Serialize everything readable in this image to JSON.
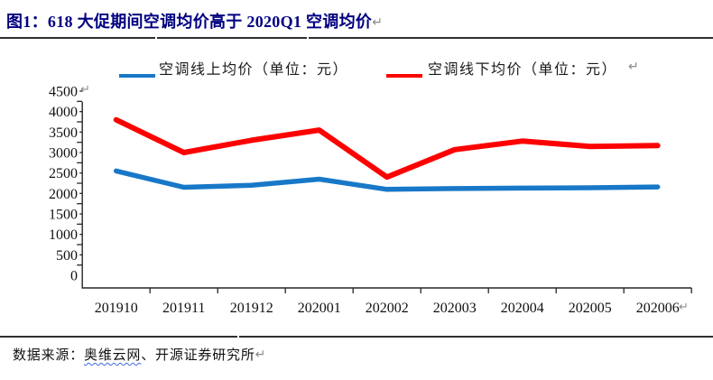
{
  "page": {
    "return_mark": "↵"
  },
  "title": {
    "text": "图1：618 大促期间空调均价高于 2020Q1 空调均价"
  },
  "chart_data": {
    "type": "line",
    "title": "",
    "categories": [
      "201910",
      "201911",
      "201912",
      "202001",
      "202002",
      "202003",
      "202004",
      "202005",
      "202006"
    ],
    "yticks": [
      4500,
      4000,
      3500,
      3000,
      2500,
      2000,
      1500,
      1000,
      500,
      0
    ],
    "ylim": [
      0,
      4500
    ],
    "xlabel": "",
    "ylabel": "",
    "grid": false,
    "legend_position": "top",
    "series": [
      {
        "name": "空调线上均价（单位：元）",
        "color": "#1878C8",
        "values": [
          2550,
          2150,
          2200,
          2350,
          2100,
          2120,
          2130,
          2140,
          2160
        ]
      },
      {
        "name": "空调线下均价（单位：元）",
        "color": "#FD0000",
        "values": [
          3800,
          3000,
          3300,
          3550,
          2400,
          3070,
          3280,
          3150,
          3170
        ]
      }
    ]
  },
  "footer": {
    "prefix": "数据来源：",
    "source_name": "奥维云网",
    "source_rest": "、开源证券研究所"
  }
}
